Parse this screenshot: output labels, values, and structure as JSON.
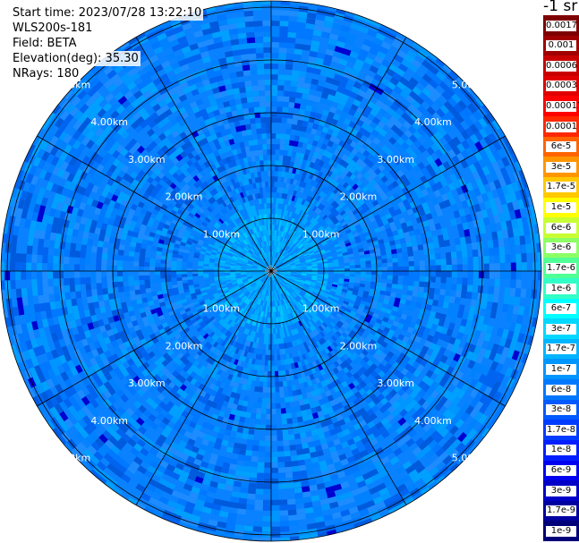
{
  "info": {
    "start_time": "Start time: 2023/07/28 13:22:10",
    "instrument": "WLS200s-181",
    "field": "Field: BETA",
    "elevation": "Elevation(deg): 35.30",
    "nrays": "NRays: 180"
  },
  "unit_label": "-1 sr",
  "range_rings": [
    "1.00km",
    "2.00km",
    "3.00km",
    "4.00km",
    "5.00km"
  ],
  "colorbar": [
    {
      "label": "0.0017",
      "color": "#7f0000"
    },
    {
      "label": "0.001",
      "color": "#a00000"
    },
    {
      "label": "0.0006",
      "color": "#c80000"
    },
    {
      "label": "0.0003",
      "color": "#e00000"
    },
    {
      "label": "0.00017",
      "color": "#ff0000"
    },
    {
      "label": "0.0001",
      "color": "#ff2800"
    },
    {
      "label": "6e-5",
      "color": "#ff6400"
    },
    {
      "label": "3e-5",
      "color": "#ff9600"
    },
    {
      "label": "1.7e-5",
      "color": "#ffc800"
    },
    {
      "label": "1e-5",
      "color": "#ffff00"
    },
    {
      "label": "6e-6",
      "color": "#c8ff32"
    },
    {
      "label": "3e-6",
      "color": "#8cff64"
    },
    {
      "label": "1.7e-6",
      "color": "#50ff96"
    },
    {
      "label": "1e-6",
      "color": "#32ffc8"
    },
    {
      "label": "6e-7",
      "color": "#00ffff"
    },
    {
      "label": "3e-7",
      "color": "#00d8ff"
    },
    {
      "label": "1.7e-7",
      "color": "#00b4ff"
    },
    {
      "label": "1e-7",
      "color": "#0096ff"
    },
    {
      "label": "6e-8",
      "color": "#0078ff"
    },
    {
      "label": "3e-8",
      "color": "#005aff"
    },
    {
      "label": "1.7e-8",
      "color": "#003cff"
    },
    {
      "label": "1e-8",
      "color": "#001eff"
    },
    {
      "label": "6e-9",
      "color": "#0000f0"
    },
    {
      "label": "3e-9",
      "color": "#0000c8"
    },
    {
      "label": "1.7e-9",
      "color": "#0000a0"
    },
    {
      "label": "1e-9",
      "color": "#000078"
    }
  ]
}
